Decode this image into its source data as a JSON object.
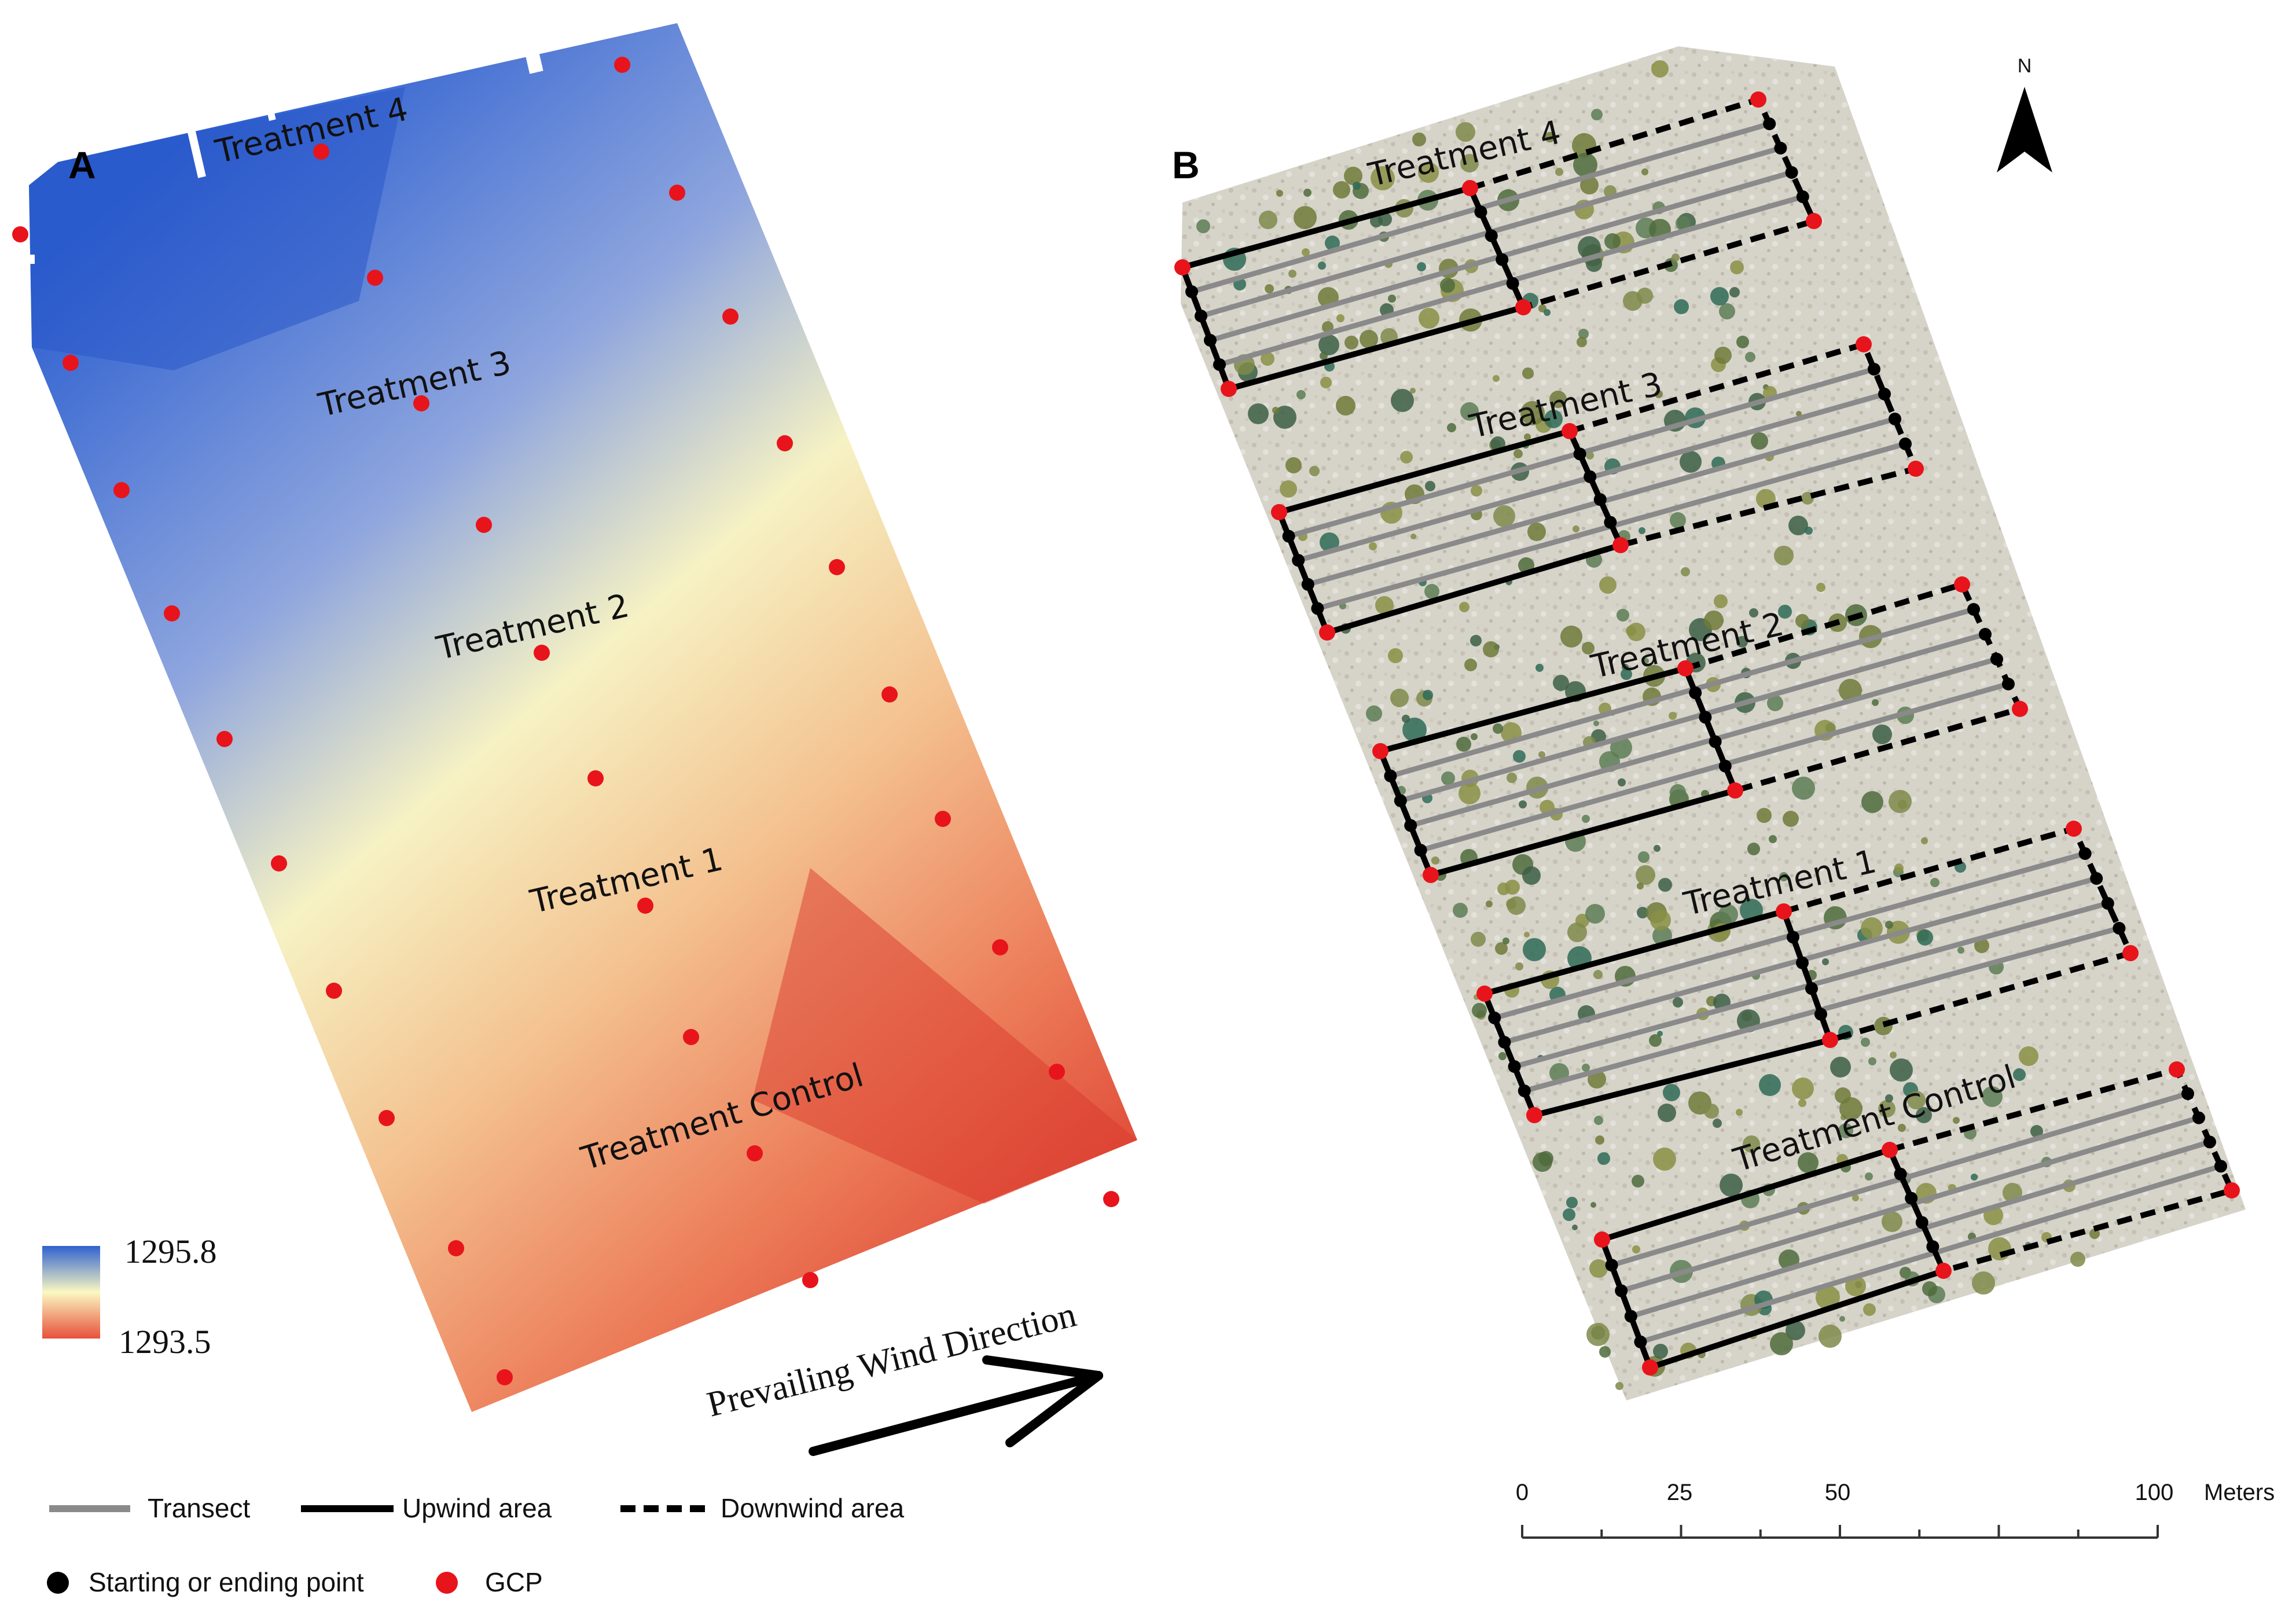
{
  "panels": {
    "a": {
      "letter": "A",
      "treatments": [
        "Treatment 4",
        "Treatment 3",
        "Treatment 2",
        "Treatment 1",
        "Treatment Control"
      ],
      "colorbar": {
        "max": "1295.8",
        "min": "1293.5",
        "colors": [
          "#2f62cf",
          "#fbf8c2",
          "#e8503a"
        ]
      },
      "wind": {
        "text": "Prevailing Wind Direction"
      }
    },
    "b": {
      "letter": "B",
      "treatments": [
        "Treatment 4",
        "Treatment 3",
        "Treatment 2",
        "Treatment 1",
        "Treatment Control"
      ],
      "north": "N",
      "scalebar": {
        "ticks": [
          "0",
          "25",
          "50",
          "100"
        ],
        "unit": "Meters"
      }
    }
  },
  "legend": {
    "transect": "Transect",
    "upwind": "Upwind area",
    "downwind": "Downwind area",
    "point": "Starting or ending point",
    "gcp": "GCP"
  },
  "colors": {
    "gcp": "#e8141b",
    "point": "#000000",
    "transect": "#8a8a8a",
    "low_elev": "#e8503a",
    "high_elev": "#2f62cf"
  }
}
